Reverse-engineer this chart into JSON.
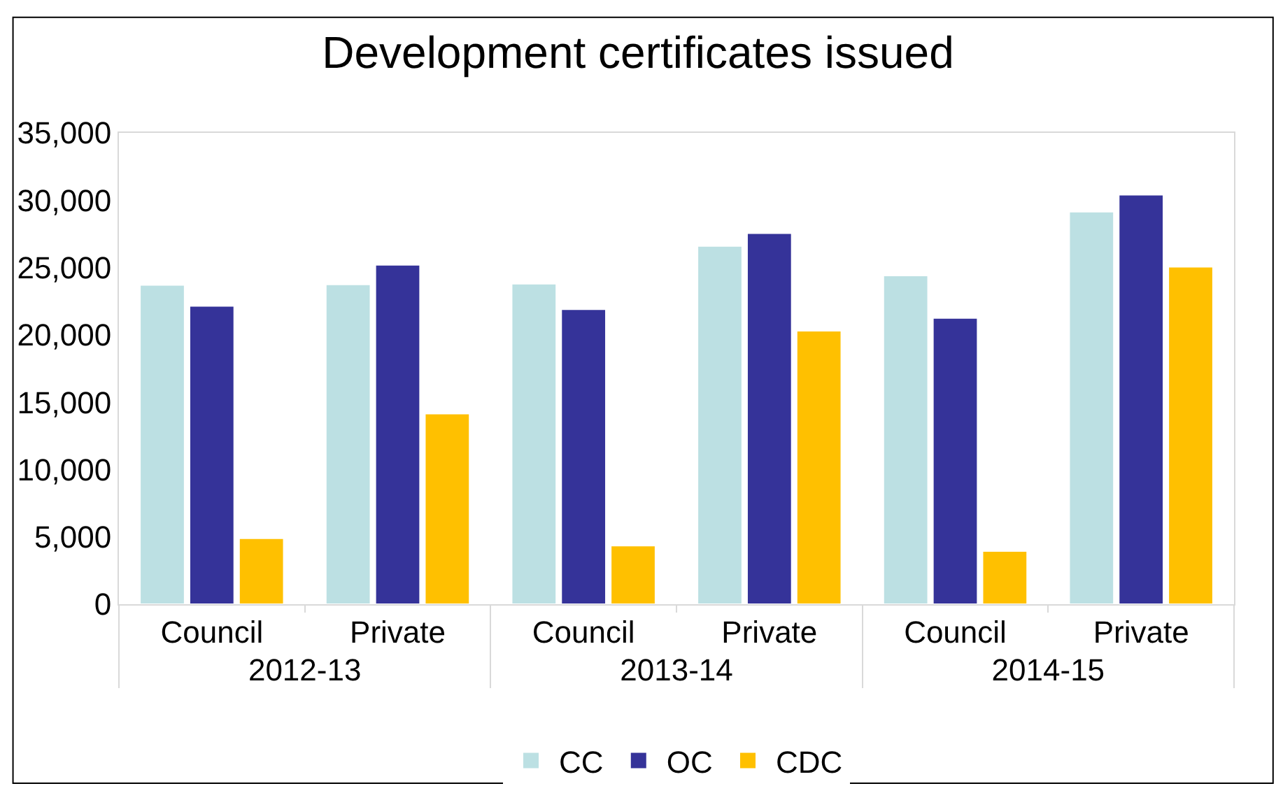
{
  "chart_data": {
    "type": "bar",
    "title": "Development certificates issued",
    "categories": [
      "Council",
      "Private",
      "Council",
      "Private",
      "Council",
      "Private"
    ],
    "annotations": [
      "2012-13",
      "2013-14",
      "2014-15"
    ],
    "series": [
      {
        "name": "CC",
        "color": "#bce0e3",
        "values": [
          23700,
          23750,
          23800,
          26600,
          24400,
          29150
        ]
      },
      {
        "name": "OC",
        "color": "#353399",
        "values": [
          22150,
          25200,
          21900,
          27550,
          21250,
          30400
        ]
      },
      {
        "name": "CDC",
        "color": "#ffc000",
        "values": [
          4900,
          14150,
          4350,
          20300,
          3950,
          25050
        ]
      }
    ],
    "ylim": [
      0,
      35000
    ],
    "yticks": [
      {
        "value": 0,
        "label": "0"
      },
      {
        "value": 5000,
        "label": "5,000"
      },
      {
        "value": 10000,
        "label": "10,000"
      },
      {
        "value": 15000,
        "label": "15,000"
      },
      {
        "value": 20000,
        "label": "20,000"
      },
      {
        "value": 25000,
        "label": "25,000"
      },
      {
        "value": 30000,
        "label": "30,000"
      },
      {
        "value": 35000,
        "label": "35,000"
      }
    ],
    "grid": false,
    "legend": "bottom"
  }
}
